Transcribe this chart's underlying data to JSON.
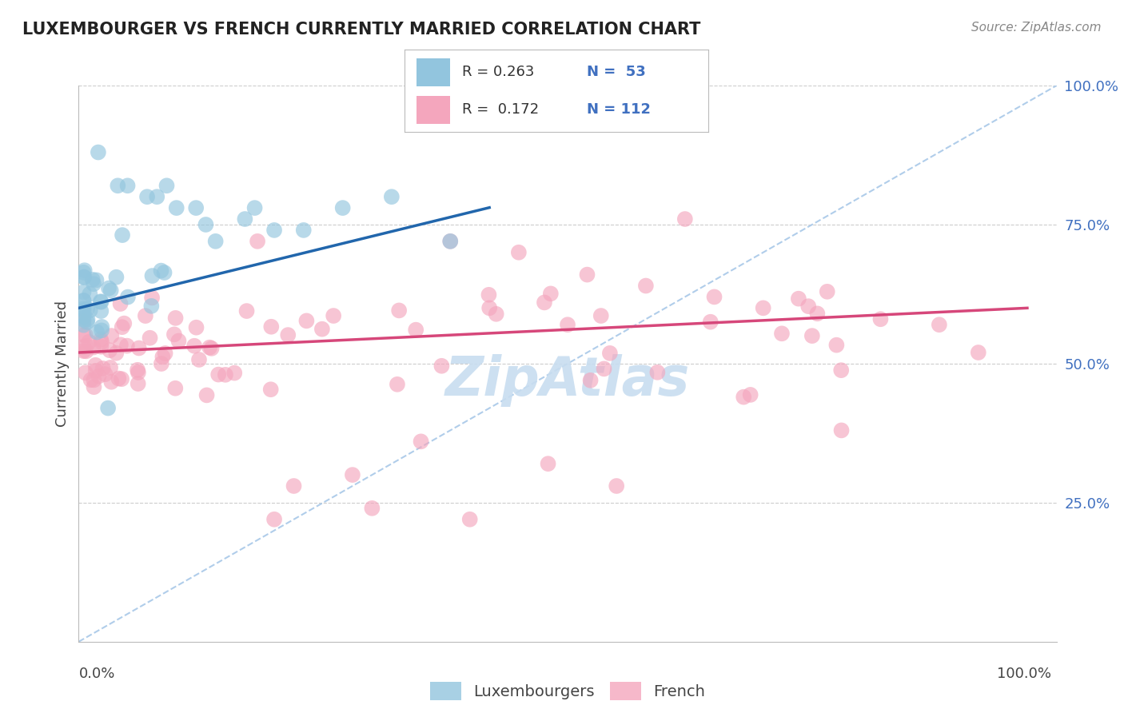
{
  "title": "LUXEMBOURGER VS FRENCH CURRENTLY MARRIED CORRELATION CHART",
  "source_text": "Source: ZipAtlas.com",
  "ylabel": "Currently Married",
  "legend_label_blue": "Luxembourgers",
  "legend_label_pink": "French",
  "xlim": [
    0.0,
    1.0
  ],
  "ylim": [
    0.0,
    1.0
  ],
  "yticks": [
    0.25,
    0.5,
    0.75,
    1.0
  ],
  "ytick_labels": [
    "25.0%",
    "50.0%",
    "75.0%",
    "100.0%"
  ],
  "blue_color": "#92c5de",
  "pink_color": "#f4a6bd",
  "blue_line_color": "#2166ac",
  "pink_line_color": "#d6477a",
  "dashed_color": "#a8c8e8",
  "background_color": "#ffffff",
  "grid_color": "#cccccc",
  "right_tick_color": "#4070c0",
  "watermark_color": "#c8ddf0",
  "legend_box_color": "#dddddd",
  "title_color": "#222222",
  "source_color": "#888888"
}
